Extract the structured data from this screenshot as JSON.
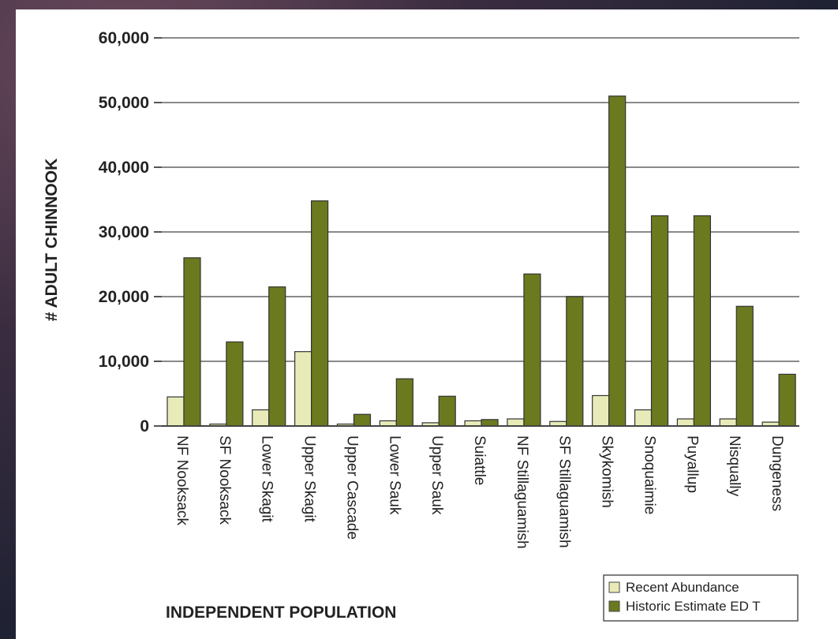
{
  "chart_data": {
    "type": "bar",
    "title": "",
    "xlabel": "INDEPENDENT POPULATION",
    "ylabel": "# ADULT CHINNOOK",
    "ylim": [
      0,
      60000
    ],
    "yticks": [
      0,
      10000,
      20000,
      30000,
      40000,
      50000,
      60000
    ],
    "ytick_labels": [
      "0",
      "10,000",
      "20,000",
      "30,000",
      "40,000",
      "50,000",
      "60,000"
    ],
    "grid": true,
    "legend_position": "bottom-right",
    "categories": [
      "NF Nooksack",
      "SF Nooksack",
      "Lower Skagit",
      "Upper Skagit",
      "Upper Cascade",
      "Lower Sauk",
      "Upper Sauk",
      "Suiattle",
      "NF Stillaguamish",
      "SF Stillaguamish",
      "Skykomish",
      "Snoquaimie",
      "Puyallup",
      "Nisqually",
      "Dungeness"
    ],
    "series": [
      {
        "name": "Recent Abundance",
        "color": "#e8ebb8",
        "values": [
          4500,
          300,
          2500,
          11500,
          300,
          800,
          500,
          800,
          1100,
          700,
          4700,
          2500,
          1100,
          1100,
          600
        ]
      },
      {
        "name": "Historic Estimate ED T",
        "color": "#6b7a1e",
        "values": [
          26000,
          13000,
          21500,
          34800,
          1800,
          7300,
          4600,
          1000,
          23500,
          20000,
          51000,
          32500,
          32500,
          18500,
          8000
        ]
      }
    ]
  }
}
